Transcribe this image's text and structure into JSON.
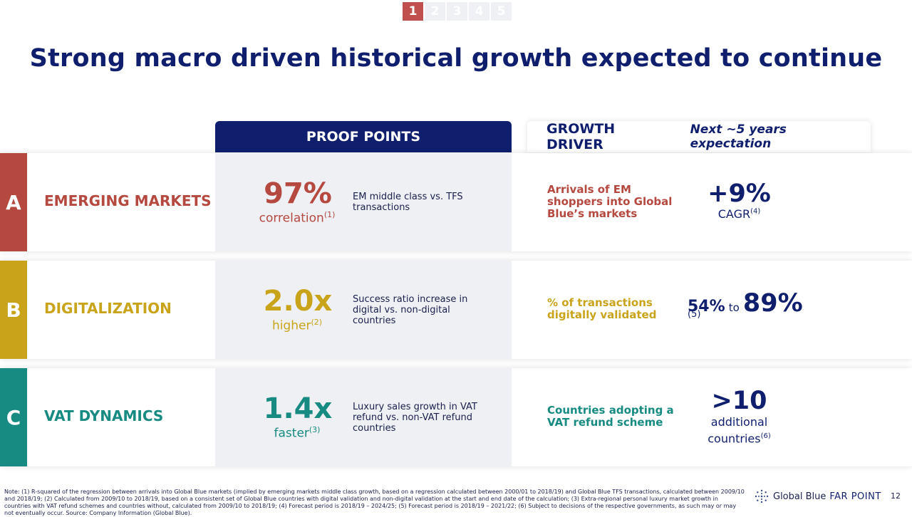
{
  "pager": {
    "pages": [
      "1",
      "2",
      "3",
      "4",
      "5"
    ],
    "active_color": "#c0504d",
    "inactive_color": "#eef0f4"
  },
  "title": "Strong macro driven historical growth expected to continue",
  "headers": {
    "proof_points": "PROOF POINTS",
    "growth_driver": "GROWTH DRIVER",
    "next_expectation": "Next ~5 years expectation"
  },
  "colors": {
    "navy": "#0f1f6e",
    "red": "#b5483f",
    "gold": "#c9a41a",
    "teal": "#178a82"
  },
  "rows": {
    "a": {
      "letter": "A",
      "category": "EMERGING MARKETS",
      "big": "97%",
      "sub": "correlation",
      "sub_ref": "(1)",
      "desc": "EM middle class vs. TFS transactions",
      "driver": "Arrivals of EM shoppers into Global Blue’s markets",
      "exp_big": "+9%",
      "exp_sub": "CAGR",
      "exp_ref": "(4)"
    },
    "b": {
      "letter": "B",
      "category": "DIGITALIZATION",
      "big": "2.0x",
      "sub": "higher",
      "sub_ref": "(2)",
      "desc": "Success ratio increase in digital vs. non-digital countries",
      "driver": "% of transactions digitally validated",
      "exp_from": "54%",
      "exp_to_word": "to",
      "exp_to": "89%",
      "exp_ref": "(5)"
    },
    "c": {
      "letter": "C",
      "category": "VAT DYNAMICS",
      "big": "1.4x",
      "sub": "faster",
      "sub_ref": "(3)",
      "desc": "Luxury sales growth in VAT refund vs. non-VAT refund countries",
      "driver": "Countries adopting a VAT refund scheme",
      "exp_big": ">10",
      "exp_sub1": "additional",
      "exp_sub2": "countries",
      "exp_ref": "(6)"
    }
  },
  "footer": {
    "note": "Note: (1) R-squared of the regression between arrivals into Global Blue markets (implied by emerging markets middle class growth, based on a regression calculated between 2000/01 to 2018/19) and Global Blue TFS transactions, calculated between 2009/10 and 2018/19; (2) Calculated from 2009/10 to 2018/19, based on a consistent set of Global Blue countries with digital validation and non-digital validation at the start and end date of the calculation; (3) Extra-regional personal luxury market growth in countries with VAT refund schemes and countries without, calculated from 2009/10 to 2018/19; (4) Forecast period is 2018/19 – 2024/25; (5) Forecast period is 2018/19 – 2021/22; (6) Subject to decisions of the respective governments, as such may or may not eventually occur. Source: Company Information (Global Blue).",
    "logo_brand": "Global Blue",
    "logo_product": "FAR POINT",
    "page_number": "12"
  }
}
